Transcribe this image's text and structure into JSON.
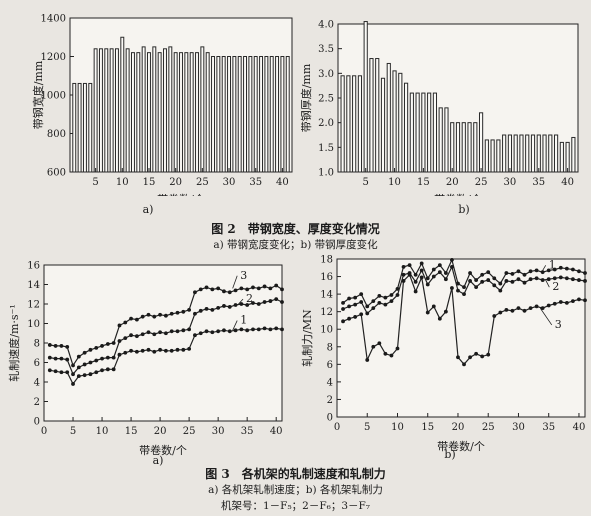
{
  "fig2": {
    "title": "图 2　带钢宽度、厚度变化情况",
    "subtitle": "a) 带钢宽度变化；b) 带钢厚度变化",
    "a": {
      "label": "a)",
      "chart_data": {
        "type": "bar",
        "xlabel": "带卷数/个",
        "ylabel": "带钢宽度/mm",
        "ylim": [
          600,
          1400
        ],
        "yticks": [
          600,
          800,
          1000,
          1200,
          1400
        ],
        "xticks": [
          5,
          10,
          15,
          20,
          25,
          30,
          35,
          40
        ],
        "categories": [
          1,
          2,
          3,
          4,
          5,
          6,
          7,
          8,
          9,
          10,
          11,
          12,
          13,
          14,
          15,
          16,
          17,
          18,
          19,
          20,
          21,
          22,
          23,
          24,
          25,
          26,
          27,
          28,
          29,
          30,
          31,
          32,
          33,
          34,
          35,
          36,
          37,
          38,
          39,
          40,
          41
        ],
        "values": [
          1060,
          1060,
          1060,
          1060,
          1240,
          1240,
          1240,
          1240,
          1240,
          1300,
          1240,
          1220,
          1220,
          1250,
          1220,
          1250,
          1220,
          1240,
          1250,
          1220,
          1220,
          1220,
          1220,
          1220,
          1250,
          1220,
          1200,
          1200,
          1200,
          1200,
          1200,
          1200,
          1200,
          1200,
          1200,
          1200,
          1200,
          1200,
          1200,
          1200,
          1200
        ]
      }
    },
    "b": {
      "label": "b)",
      "chart_data": {
        "type": "bar",
        "xlabel": "带卷数/个",
        "ylabel": "带钢厚度/mm",
        "ylim": [
          1.0,
          4.0
        ],
        "yticks": [
          "1.0",
          "1.5",
          "2.0",
          "2.5",
          "3.0",
          "3.5",
          "4.0"
        ],
        "xticks": [
          5,
          10,
          15,
          20,
          25,
          30,
          35,
          40
        ],
        "categories": [
          1,
          2,
          3,
          4,
          5,
          6,
          7,
          8,
          9,
          10,
          11,
          12,
          13,
          14,
          15,
          16,
          17,
          18,
          19,
          20,
          21,
          22,
          23,
          24,
          25,
          26,
          27,
          28,
          29,
          30,
          31,
          32,
          33,
          34,
          35,
          36,
          37,
          38,
          39,
          40,
          41
        ],
        "values": [
          2.95,
          2.95,
          2.95,
          2.95,
          4.05,
          3.3,
          3.3,
          2.9,
          3.2,
          3.05,
          3.0,
          2.8,
          2.6,
          2.6,
          2.6,
          2.6,
          2.6,
          2.3,
          2.3,
          2.0,
          2.0,
          2.0,
          2.0,
          2.0,
          2.2,
          1.65,
          1.65,
          1.65,
          1.75,
          1.75,
          1.75,
          1.75,
          1.75,
          1.75,
          1.75,
          1.75,
          1.75,
          1.75,
          1.6,
          1.6,
          1.7
        ]
      }
    }
  },
  "fig3": {
    "title": "图 3　各机架的轧制速度和轧制力",
    "subtitle1": "a) 各机架轧制速度；b) 各机架轧制力",
    "subtitle2": "机架号：1－F₅；2－F₆；3－F₇",
    "a": {
      "label": "a)",
      "chart_data": {
        "type": "line",
        "xlabel": "带卷数/个",
        "ylabel": "轧制速度/m·s⁻¹",
        "xlim": [
          0,
          41
        ],
        "ylim": [
          0,
          16
        ],
        "xticks": [
          0,
          5,
          10,
          15,
          20,
          25,
          30,
          35,
          40
        ],
        "yticks": [
          0,
          2,
          4,
          6,
          8,
          10,
          12,
          14,
          16
        ],
        "x": [
          1,
          2,
          3,
          4,
          5,
          6,
          7,
          8,
          9,
          10,
          11,
          12,
          13,
          14,
          15,
          16,
          17,
          18,
          19,
          20,
          21,
          22,
          23,
          24,
          25,
          26,
          27,
          28,
          29,
          30,
          31,
          32,
          33,
          34,
          35,
          36,
          37,
          38,
          39,
          40,
          41
        ],
        "series": [
          {
            "name": "1",
            "values": [
              5.2,
              5.1,
              5.0,
              5.0,
              3.8,
              4.6,
              4.7,
              4.8,
              5.0,
              5.2,
              5.3,
              5.3,
              6.8,
              7.0,
              7.2,
              7.1,
              7.2,
              7.3,
              7.1,
              7.3,
              7.2,
              7.2,
              7.3,
              7.3,
              7.4,
              8.8,
              9.0,
              9.2,
              9.1,
              9.2,
              9.3,
              9.2,
              9.3,
              9.4,
              9.3,
              9.4,
              9.4,
              9.5,
              9.4,
              9.5,
              9.4
            ]
          },
          {
            "name": "2",
            "values": [
              6.5,
              6.4,
              6.4,
              6.3,
              4.8,
              5.5,
              5.8,
              6.0,
              6.2,
              6.4,
              6.5,
              6.5,
              8.2,
              8.5,
              8.8,
              8.7,
              8.9,
              9.1,
              8.9,
              9.1,
              9.0,
              9.2,
              9.2,
              9.3,
              9.4,
              11.0,
              11.3,
              11.5,
              11.4,
              11.6,
              11.8,
              11.7,
              11.9,
              12.0,
              11.9,
              12.1,
              12.0,
              12.2,
              12.3,
              12.5,
              12.2
            ]
          },
          {
            "name": "3",
            "values": [
              7.8,
              7.7,
              7.7,
              7.6,
              5.7,
              6.6,
              7.0,
              7.3,
              7.5,
              7.7,
              7.9,
              8.0,
              9.8,
              10.1,
              10.5,
              10.4,
              10.7,
              10.9,
              10.7,
              10.9,
              10.8,
              11.0,
              11.1,
              11.2,
              11.4,
              13.2,
              13.5,
              13.7,
              13.5,
              13.6,
              13.3,
              13.2,
              13.4,
              13.6,
              13.5,
              13.7,
              13.6,
              13.8,
              13.6,
              13.9,
              13.5
            ]
          }
        ]
      }
    },
    "b": {
      "label": "b)",
      "chart_data": {
        "type": "line",
        "xlabel": "带卷数/个",
        "ylabel": "轧制力/MN",
        "xlim": [
          0,
          41
        ],
        "ylim": [
          0,
          18
        ],
        "xticks": [
          0,
          5,
          10,
          15,
          20,
          25,
          30,
          35,
          40
        ],
        "yticks": [
          0,
          2,
          4,
          6,
          8,
          10,
          12,
          14,
          16,
          18
        ],
        "x": [
          1,
          2,
          3,
          4,
          5,
          6,
          7,
          8,
          9,
          10,
          11,
          12,
          13,
          14,
          15,
          16,
          17,
          18,
          19,
          20,
          21,
          22,
          23,
          24,
          25,
          26,
          27,
          28,
          29,
          30,
          31,
          32,
          33,
          34,
          35,
          36,
          37,
          38,
          39,
          40,
          41
        ],
        "series": [
          {
            "name": "1",
            "values": [
              13.0,
              13.5,
              13.6,
              14.0,
              12.6,
              13.2,
              13.8,
              13.6,
              13.9,
              14.6,
              17.1,
              17.3,
              16.2,
              17.5,
              15.8,
              16.8,
              17.3,
              16.4,
              17.9,
              15.2,
              14.8,
              16.4,
              15.6,
              16.2,
              16.5,
              15.8,
              15.2,
              16.4,
              16.3,
              16.6,
              16.2,
              16.6,
              16.7,
              16.5,
              16.7,
              16.8,
              17.0,
              16.9,
              16.8,
              16.6,
              16.4
            ]
          },
          {
            "name": "2",
            "values": [
              12.3,
              12.6,
              12.8,
              13.1,
              11.8,
              12.4,
              13.0,
              12.8,
              13.2,
              13.9,
              16.2,
              16.4,
              15.4,
              16.7,
              15.1,
              16.0,
              16.5,
              15.7,
              17.1,
              14.4,
              14.0,
              15.5,
              14.8,
              15.4,
              15.6,
              15.0,
              14.4,
              15.5,
              15.4,
              15.7,
              15.3,
              15.7,
              15.8,
              15.6,
              15.7,
              15.8,
              15.9,
              15.8,
              15.7,
              15.6,
              15.5
            ]
          },
          {
            "name": "3",
            "values": [
              10.9,
              11.2,
              11.4,
              11.7,
              6.5,
              8.0,
              8.4,
              7.2,
              7.0,
              7.8,
              15.5,
              16.2,
              14.3,
              15.9,
              11.9,
              12.6,
              11.2,
              12.0,
              14.7,
              6.8,
              6.0,
              6.8,
              7.2,
              6.9,
              7.1,
              11.5,
              11.9,
              12.2,
              12.1,
              12.4,
              12.1,
              12.4,
              12.6,
              12.4,
              12.7,
              12.9,
              13.1,
              13.0,
              13.2,
              13.4,
              13.3
            ]
          }
        ]
      }
    }
  }
}
